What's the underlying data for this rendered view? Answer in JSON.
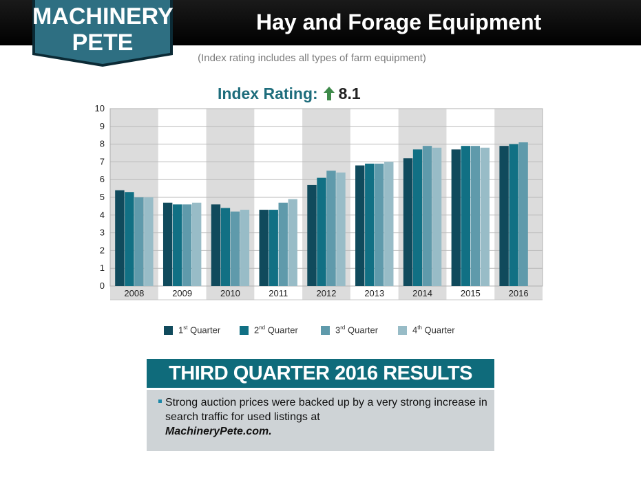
{
  "header": {
    "title": "Hay and Forage Equipment",
    "logo_line1": "MACHINERY",
    "logo_line2": "PETE"
  },
  "subtitle": "(Index rating includes all types of farm equipment)",
  "index": {
    "label": "Index Rating:",
    "value": "8.1",
    "arrow_icon": "up-arrow-icon",
    "arrow_color": "#3e8a4a"
  },
  "chart_data": {
    "type": "bar",
    "categories": [
      "2008",
      "2009",
      "2010",
      "2011",
      "2012",
      "2013",
      "2014",
      "2015",
      "2016"
    ],
    "series": [
      {
        "name": "1st Quarter",
        "name_base": "1",
        "name_sup": "st",
        "name_rest": " Quarter",
        "color": "#104a5c",
        "values": [
          5.4,
          4.7,
          4.6,
          4.3,
          5.7,
          6.8,
          7.2,
          7.7,
          7.9
        ]
      },
      {
        "name": "2nd Quarter",
        "name_base": "2",
        "name_sup": "nd",
        "name_rest": " Quarter",
        "color": "#117084",
        "values": [
          5.3,
          4.6,
          4.4,
          4.3,
          6.1,
          6.9,
          7.7,
          7.9,
          8.0
        ]
      },
      {
        "name": "3rd Quarter",
        "name_base": "3",
        "name_sup": "rd",
        "name_rest": " Quarter",
        "color": "#5f9aab",
        "values": [
          5.0,
          4.6,
          4.2,
          4.7,
          6.5,
          6.9,
          7.9,
          7.9,
          8.1
        ]
      },
      {
        "name": "4th Quarter",
        "name_base": "4",
        "name_sup": "th",
        "name_rest": " Quarter",
        "color": "#98bcc7",
        "values": [
          5.0,
          4.7,
          4.3,
          4.9,
          6.4,
          7.0,
          7.8,
          7.8,
          null
        ]
      }
    ],
    "y_ticks": [
      "0",
      "1",
      "2",
      "3",
      "4",
      "5",
      "6",
      "7",
      "8",
      "9",
      "10"
    ],
    "ylim": [
      0,
      10
    ],
    "grid": true,
    "alternating_band_color": "#dcdcdc",
    "legend_position": "bottom"
  },
  "results": {
    "header": "THIRD QUARTER 2016 RESULTS",
    "bullet_text": "Strong auction prices were backed up by a very strong increase in search traffic for used listings at",
    "bullet_site": "MachineryPete.com."
  }
}
